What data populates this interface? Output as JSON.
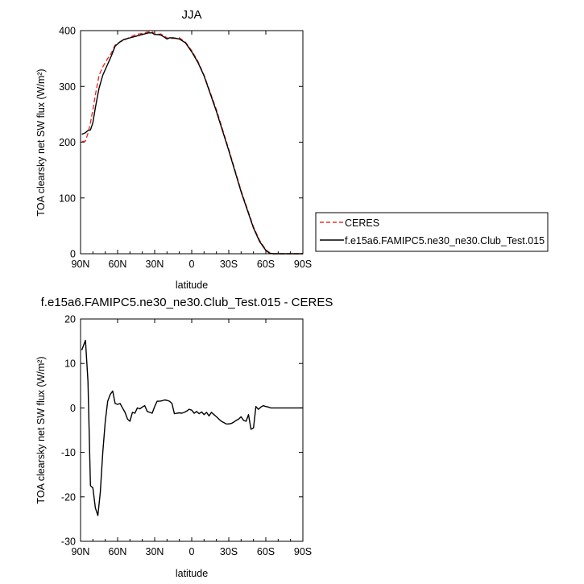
{
  "chart_data": [
    {
      "type": "line",
      "title": "JJA",
      "xlabel": "latitude",
      "ylabel": "TOA clearsky net SW flux (W/m²)",
      "xlim": [
        90,
        -90
      ],
      "ylim": [
        0,
        400
      ],
      "x_ticks": [
        90,
        60,
        30,
        0,
        -30,
        -60,
        -90
      ],
      "x_tick_labels": [
        "90N",
        "60N",
        "30N",
        "0",
        "30S",
        "60S",
        "90S"
      ],
      "y_ticks": [
        0,
        100,
        200,
        300,
        400
      ],
      "y_tick_labels": [
        "0",
        "100",
        "200",
        "300",
        "400"
      ],
      "legend": "outside-right",
      "series": [
        {
          "name": "CERES",
          "color": "#e8302a",
          "dash": "dashed",
          "x": [
            89,
            86,
            84,
            82,
            80,
            78,
            75,
            72,
            68,
            65,
            62,
            58,
            55,
            50,
            45,
            40,
            35,
            32,
            30,
            28,
            25,
            22,
            20,
            18,
            15,
            10,
            5,
            0,
            -5,
            -10,
            -20,
            -30,
            -40,
            -50,
            -55,
            -60,
            -63,
            -66,
            -70,
            -75,
            -80,
            -85,
            -90
          ],
          "y": [
            201,
            202,
            216,
            235,
            258,
            285,
            320,
            335,
            350,
            360,
            374,
            380,
            383,
            388,
            393,
            395,
            398,
            398,
            394,
            393,
            394,
            390,
            387,
            386,
            386,
            387,
            379,
            364,
            345,
            320,
            258,
            187,
            113,
            48,
            24,
            7,
            2,
            0,
            0,
            0,
            0,
            0,
            0
          ]
        },
        {
          "name": "f.e15a6.FAMIPC5.ne30_ne30.Club_Test.015",
          "color": "#000000",
          "dash": "solid",
          "x": [
            89,
            86,
            84,
            82,
            80,
            78,
            75,
            72,
            68,
            65,
            62,
            58,
            55,
            50,
            45,
            40,
            35,
            32,
            30,
            28,
            25,
            22,
            20,
            18,
            15,
            10,
            5,
            0,
            -5,
            -10,
            -20,
            -30,
            -40,
            -50,
            -55,
            -60,
            -63,
            -66,
            -70,
            -75,
            -80,
            -85,
            -90
          ],
          "y": [
            214,
            217,
            221,
            222,
            235,
            262,
            297,
            320,
            340,
            355,
            372,
            380,
            384,
            387,
            390,
            393,
            396,
            396,
            393,
            393,
            392,
            388,
            385,
            387,
            387,
            385,
            378,
            362,
            343,
            319,
            255,
            185,
            111,
            46,
            22,
            6,
            1,
            0,
            0,
            0,
            0,
            0,
            0
          ]
        }
      ]
    },
    {
      "type": "line",
      "title": "f.e15a6.FAMIPC5.ne30_ne30.Club_Test.015 - CERES",
      "xlabel": "latitude",
      "ylabel": "TOA clearsky net SW flux (W/m²)",
      "xlim": [
        90,
        -90
      ],
      "ylim": [
        -30,
        20
      ],
      "x_ticks": [
        90,
        60,
        30,
        0,
        -30,
        -60,
        -90
      ],
      "x_tick_labels": [
        "90N",
        "60N",
        "30N",
        "0",
        "30S",
        "60S",
        "90S"
      ],
      "y_ticks": [
        -30,
        -20,
        -10,
        0,
        10,
        20
      ],
      "y_tick_labels": [
        "-30",
        "-20",
        "-10",
        "0",
        "10",
        "20"
      ],
      "series": [
        {
          "color": "#000000",
          "dash": "solid",
          "x": [
            89,
            86,
            84,
            82,
            80,
            78,
            76,
            74,
            72,
            70,
            68,
            66,
            64,
            62,
            60,
            58,
            56,
            54,
            52,
            50,
            48,
            46,
            44,
            42,
            40,
            38,
            36,
            34,
            32,
            30,
            28,
            26,
            24,
            22,
            20,
            18,
            16,
            14,
            12,
            10,
            8,
            6,
            4,
            2,
            0,
            -2,
            -4,
            -6,
            -8,
            -10,
            -12,
            -14,
            -16,
            -18,
            -20,
            -22,
            -24,
            -26,
            -28,
            -30,
            -32,
            -34,
            -36,
            -38,
            -40,
            -42,
            -44,
            -46,
            -48,
            -50,
            -52,
            -54,
            -56,
            -58,
            -60,
            -62,
            -64,
            -66,
            -68,
            -70,
            -72,
            -74,
            -76,
            -78,
            -80,
            -82,
            -84,
            -86,
            -88,
            -90
          ],
          "y": [
            13.0,
            15.2,
            6.0,
            -17.5,
            -18.0,
            -22.5,
            -24.2,
            -19.0,
            -10.0,
            -3.0,
            1.5,
            3.0,
            3.8,
            1.0,
            0.8,
            1.0,
            0.0,
            -1.0,
            -2.5,
            -3.0,
            -1.0,
            -1.2,
            0.0,
            -0.2,
            0.2,
            0.5,
            -0.8,
            -1.0,
            -1.2,
            0.3,
            1.5,
            1.5,
            1.6,
            1.8,
            1.7,
            1.5,
            1.0,
            -1.3,
            -1.2,
            -1.1,
            -1.2,
            -1.0,
            -0.7,
            -0.3,
            -0.5,
            -1.2,
            -0.8,
            -1.3,
            -0.9,
            -1.5,
            -1.0,
            -1.8,
            -1.0,
            -1.5,
            -2.0,
            -2.5,
            -3.0,
            -3.3,
            -3.6,
            -3.6,
            -3.5,
            -3.2,
            -2.8,
            -2.5,
            -2.0,
            -2.8,
            -3.0,
            -1.5,
            -4.8,
            -4.5,
            0.3,
            -0.3,
            0.2,
            0.5,
            0.3,
            0.2,
            0.0,
            0.0,
            0.0,
            0.0,
            0.0,
            0.0,
            0.0,
            0.0,
            0.0,
            0.0,
            0.0,
            0.0,
            0.0,
            0.0
          ]
        }
      ]
    }
  ]
}
